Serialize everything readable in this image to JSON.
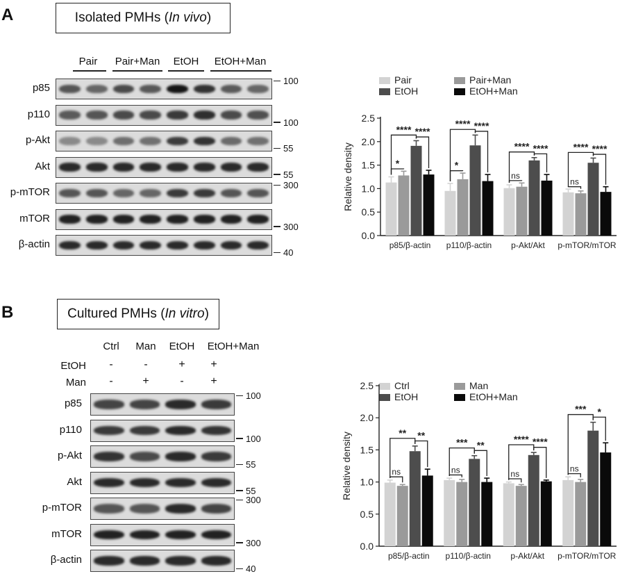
{
  "panel_a": {
    "letter": "A",
    "title_main": "Isolated PMHs (",
    "title_italic": "In vivo",
    "title_end": ")",
    "groups": [
      "Pair",
      "Pair+Man",
      "EtOH",
      "EtOH+Man"
    ],
    "rows": [
      {
        "label": "p85",
        "mw": "100"
      },
      {
        "label": "p110",
        "mw": "100"
      },
      {
        "label": "p-Akt",
        "mw": "55"
      },
      {
        "label": "Akt",
        "mw": "55"
      },
      {
        "label": "p-mTOR",
        "mw": "300"
      },
      {
        "label": "mTOR",
        "mw": "300"
      },
      {
        "label": "β-actin",
        "mw": "40"
      }
    ]
  },
  "panel_b": {
    "letter": "B",
    "title_main": "Cultured PMHs (",
    "title_italic": "In vitro",
    "title_end": ")",
    "groups": [
      "Ctrl",
      "Man",
      "EtOH",
      "EtOH+Man"
    ],
    "treatments": [
      {
        "label": "EtOH",
        "values": [
          "-",
          "-",
          "+",
          "+"
        ]
      },
      {
        "label": "Man",
        "values": [
          "-",
          "+",
          "-",
          "+"
        ]
      }
    ],
    "rows": [
      {
        "label": "p85",
        "mw": "100"
      },
      {
        "label": "p110",
        "mw": "100"
      },
      {
        "label": "p-Akt",
        "mw": "55"
      },
      {
        "label": "Akt",
        "mw": "55"
      },
      {
        "label": "p-mTOR",
        "mw": "300"
      },
      {
        "label": "mTOR",
        "mw": "300"
      },
      {
        "label": "β-actin",
        "mw": "40"
      }
    ]
  },
  "chart_data": [
    {
      "type": "bar",
      "panel": "A",
      "ylabel": "Relative density",
      "ylim": [
        0,
        2.5
      ],
      "yticks": [
        "0.0",
        "0.5",
        "1.0",
        "1.5",
        "2.0",
        "2.5"
      ],
      "categories": [
        "p85/β-actin",
        "p110/β-actin",
        "p-Akt/Akt",
        "p-mTOR/mTOR"
      ],
      "legend_position": "top",
      "series": [
        {
          "name": "Pair",
          "color": "#d3d3d3",
          "values": [
            1.13,
            0.95,
            1.01,
            0.92
          ],
          "errors": [
            0.12,
            0.16,
            0.07,
            0.07
          ]
        },
        {
          "name": "Pair+Man",
          "color": "#9a9a9a",
          "values": [
            1.28,
            1.2,
            1.04,
            0.9
          ],
          "errors": [
            0.09,
            0.13,
            0.08,
            0.05
          ]
        },
        {
          "name": "EtOH",
          "color": "#4d4d4d",
          "values": [
            1.91,
            1.92,
            1.6,
            1.55
          ],
          "errors": [
            0.11,
            0.22,
            0.06,
            0.1
          ]
        },
        {
          "name": "EtOH+Man",
          "color": "#0a0a0a",
          "values": [
            1.3,
            1.16,
            1.17,
            0.93
          ],
          "errors": [
            0.09,
            0.14,
            0.13,
            0.11
          ]
        }
      ],
      "annotations": [
        {
          "category": 0,
          "pair": [
            0,
            1
          ],
          "label": "*"
        },
        {
          "category": 0,
          "pair": [
            0,
            2
          ],
          "label": "****"
        },
        {
          "category": 0,
          "pair": [
            2,
            3
          ],
          "label": "****"
        },
        {
          "category": 1,
          "pair": [
            0,
            1
          ],
          "label": "*"
        },
        {
          "category": 1,
          "pair": [
            0,
            2
          ],
          "label": "****"
        },
        {
          "category": 1,
          "pair": [
            2,
            3
          ],
          "label": "****"
        },
        {
          "category": 2,
          "pair": [
            0,
            1
          ],
          "label": "ns"
        },
        {
          "category": 2,
          "pair": [
            0,
            2
          ],
          "label": "****"
        },
        {
          "category": 2,
          "pair": [
            2,
            3
          ],
          "label": "****"
        },
        {
          "category": 3,
          "pair": [
            0,
            1
          ],
          "label": "ns"
        },
        {
          "category": 3,
          "pair": [
            0,
            2
          ],
          "label": "****"
        },
        {
          "category": 3,
          "pair": [
            2,
            3
          ],
          "label": "****"
        }
      ]
    },
    {
      "type": "bar",
      "panel": "B",
      "ylabel": "Relative density",
      "ylim": [
        0,
        2.5
      ],
      "yticks": [
        "0.0",
        "0.5",
        "1.0",
        "1.5",
        "2.0",
        "2.5"
      ],
      "categories": [
        "p85/β-actin",
        "p110/β-actin",
        "p-Akt/Akt",
        "p-mTOR/mTOR"
      ],
      "legend_position": "top",
      "series": [
        {
          "name": "Ctrl",
          "color": "#d3d3d3",
          "values": [
            0.99,
            1.03,
            0.98,
            1.03
          ],
          "errors": [
            0.04,
            0.03,
            0.02,
            0.05
          ]
        },
        {
          "name": "Man",
          "color": "#9a9a9a",
          "values": [
            0.94,
            1.0,
            0.94,
            1.0
          ],
          "errors": [
            0.02,
            0.04,
            0.02,
            0.04
          ]
        },
        {
          "name": "EtOH",
          "color": "#4d4d4d",
          "values": [
            1.48,
            1.36,
            1.42,
            1.8
          ],
          "errors": [
            0.08,
            0.05,
            0.04,
            0.13
          ]
        },
        {
          "name": "EtOH+Man",
          "color": "#0a0a0a",
          "values": [
            1.1,
            1.0,
            1.01,
            1.46
          ],
          "errors": [
            0.1,
            0.06,
            0.02,
            0.15
          ]
        }
      ],
      "annotations": [
        {
          "category": 0,
          "pair": [
            0,
            1
          ],
          "label": "ns"
        },
        {
          "category": 0,
          "pair": [
            0,
            2
          ],
          "label": "**"
        },
        {
          "category": 0,
          "pair": [
            2,
            3
          ],
          "label": "**"
        },
        {
          "category": 1,
          "pair": [
            0,
            1
          ],
          "label": "ns"
        },
        {
          "category": 1,
          "pair": [
            0,
            2
          ],
          "label": "***"
        },
        {
          "category": 1,
          "pair": [
            2,
            3
          ],
          "label": "**"
        },
        {
          "category": 2,
          "pair": [
            0,
            1
          ],
          "label": "ns"
        },
        {
          "category": 2,
          "pair": [
            0,
            2
          ],
          "label": "****"
        },
        {
          "category": 2,
          "pair": [
            2,
            3
          ],
          "label": "****"
        },
        {
          "category": 3,
          "pair": [
            0,
            1
          ],
          "label": "ns"
        },
        {
          "category": 3,
          "pair": [
            0,
            2
          ],
          "label": "***"
        },
        {
          "category": 3,
          "pair": [
            2,
            3
          ],
          "label": "*"
        }
      ]
    }
  ]
}
